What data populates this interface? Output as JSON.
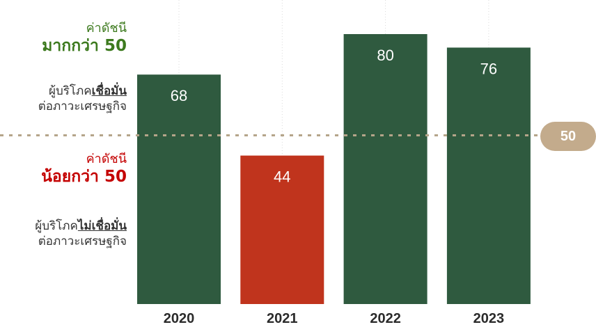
{
  "chart_data": {
    "type": "bar",
    "categories": [
      "2020",
      "2021",
      "2022",
      "2023"
    ],
    "values": [
      68,
      44,
      80,
      76
    ],
    "threshold": 50,
    "threshold_label": "50",
    "colors": {
      "above": "#2f5a3f",
      "below": "#c0341d",
      "threshold_line": "#b5a58a",
      "badge": "#c3ab8c"
    }
  },
  "annotations": {
    "above": {
      "label_small": "ค่าดัชนี",
      "label_big": "มากกว่า 50",
      "desc_prefix": "ผู้บริโภค",
      "desc_emphasis": "เชื่อมั่น",
      "desc_line2": "ต่อภาวะเศรษฐกิจ"
    },
    "below": {
      "label_small": "ค่าดัชนี",
      "label_big": "น้อยกว่า 50",
      "desc_prefix": "ผู้บริโภค",
      "desc_emphasis": "ไม่เชื่อมั่น",
      "desc_line2": "ต่อภาวะเศรษฐกิจ"
    }
  }
}
